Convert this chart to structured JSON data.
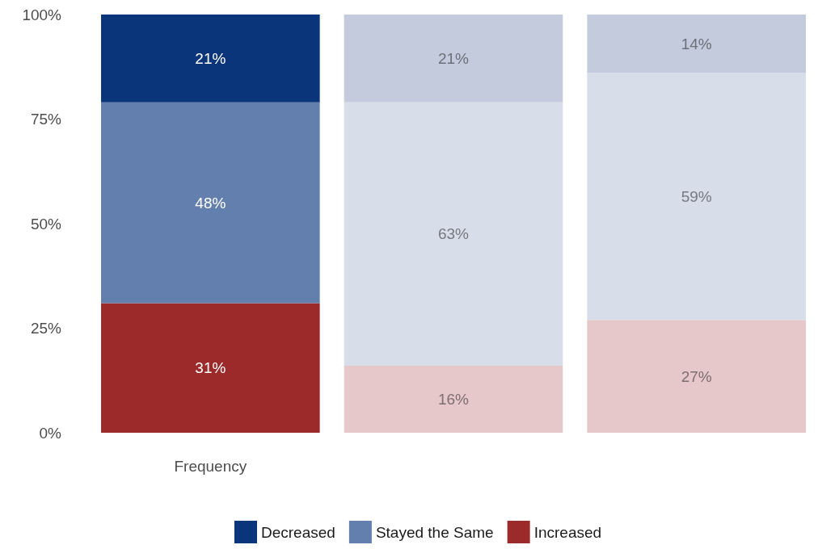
{
  "chart_data": {
    "type": "bar",
    "stacked": true,
    "categories": [
      "Frequency",
      null,
      null
    ],
    "series": [
      {
        "name": "Increased",
        "color": "#9c2a2b",
        "colors": [
          "#9c2a2b",
          "#e6c8ca",
          "#e6c8ca"
        ],
        "values": [
          31,
          16,
          27
        ],
        "value_labels": [
          "31%",
          "16%",
          "27%"
        ]
      },
      {
        "name": "Stayed the Same",
        "color": "#627fad",
        "colors": [
          "#627fad",
          "#d7dde9",
          "#d7dde9"
        ],
        "values": [
          48,
          63,
          59
        ],
        "value_labels": [
          "48%",
          "63%",
          "59%"
        ]
      },
      {
        "name": "Decreased",
        "color": "#0b357a",
        "colors": [
          "#0b357a",
          "#c3cbdd",
          "#c3cbdd"
        ],
        "values": [
          21,
          21,
          14
        ],
        "value_labels": [
          "21%",
          "21%",
          "14%"
        ]
      }
    ],
    "ylim": [
      0,
      100
    ],
    "yticks": [
      {
        "value": 0,
        "label": "0%"
      },
      {
        "value": 25,
        "label": "25%"
      },
      {
        "value": 50,
        "label": "50%"
      },
      {
        "value": 75,
        "label": "75%"
      },
      {
        "value": 100,
        "label": "100%"
      }
    ],
    "grid": false,
    "legend": "bottom"
  }
}
